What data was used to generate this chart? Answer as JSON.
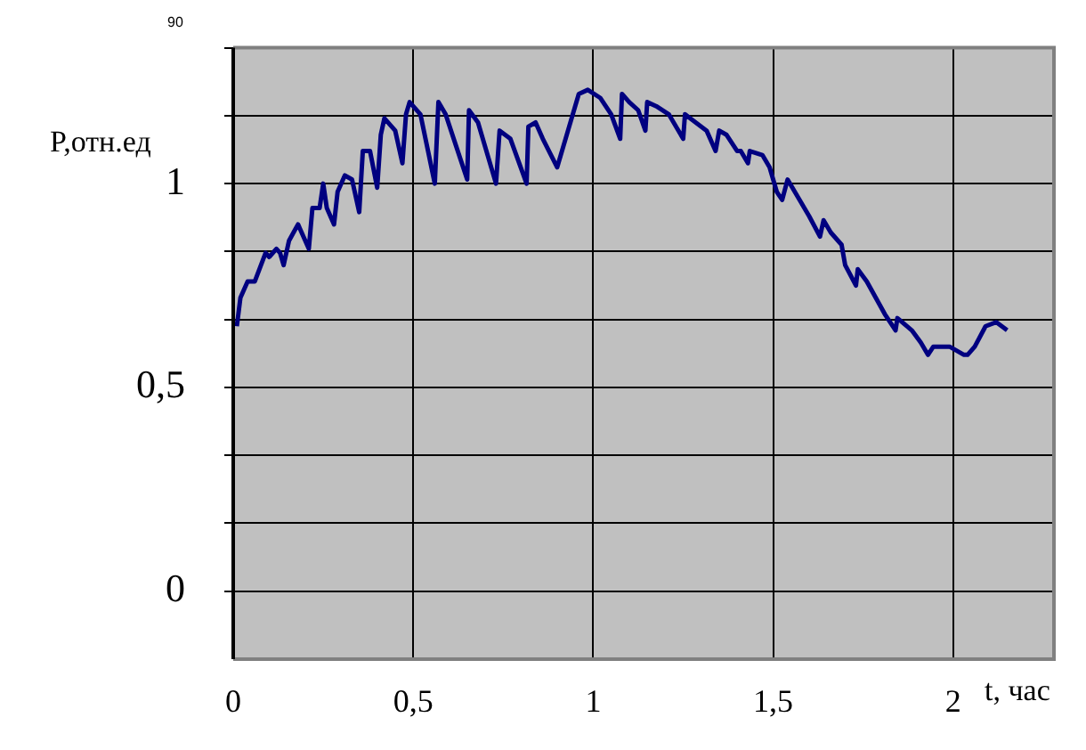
{
  "chart_data": {
    "type": "line",
    "xlabel": "t, час",
    "ylabel": "P,отн.ед",
    "xlim": [
      0,
      2.28
    ],
    "xticks": [
      0,
      {
        "value": 0.5,
        "label": "0,5"
      },
      1,
      {
        "value": 1.5,
        "label": "1,5"
      },
      2
    ],
    "ylim": [
      -0.1667,
      1.3333
    ],
    "yticks": [
      0,
      {
        "value": 0.1667,
        "label": null
      },
      {
        "value": 0.3333,
        "label": null
      },
      {
        "value": 0.5,
        "label": "0,5"
      },
      {
        "value": 0.6667,
        "label": null
      },
      {
        "value": 0.8333,
        "label": null
      },
      1,
      {
        "value": 1.1667,
        "label": null
      },
      {
        "value": 1.3333,
        "label": null
      }
    ],
    "annotations": [
      "90"
    ],
    "grid": true,
    "legend": false,
    "marker": "none",
    "line_style": "solid",
    "series": [
      {
        "color": "#000080",
        "x": [
          0.01,
          0.02,
          0.04,
          0.06,
          0.09,
          0.1,
          0.12,
          0.13,
          0.14,
          0.155,
          0.18,
          0.19,
          0.21,
          0.22,
          0.24,
          0.25,
          0.26,
          0.28,
          0.29,
          0.31,
          0.33,
          0.35,
          0.36,
          0.38,
          0.4,
          0.41,
          0.42,
          0.45,
          0.47,
          0.48,
          0.49,
          0.52,
          0.56,
          0.57,
          0.59,
          0.65,
          0.655,
          0.68,
          0.73,
          0.74,
          0.77,
          0.815,
          0.82,
          0.84,
          0.86,
          0.9,
          0.93,
          0.96,
          0.985,
          1.02,
          1.05,
          1.075,
          1.08,
          1.1,
          1.125,
          1.145,
          1.15,
          1.175,
          1.21,
          1.25,
          1.255,
          1.27,
          1.315,
          1.34,
          1.35,
          1.37,
          1.4,
          1.41,
          1.43,
          1.435,
          1.47,
          1.49,
          1.51,
          1.525,
          1.54,
          1.56,
          1.6,
          1.63,
          1.64,
          1.66,
          1.69,
          1.7,
          1.73,
          1.735,
          1.76,
          1.81,
          1.84,
          1.845,
          1.885,
          1.91,
          1.93,
          1.945,
          1.99,
          2.03,
          2.04,
          2.06,
          2.09,
          2.12,
          2.15
        ],
        "values": [
          0.65,
          0.72,
          0.76,
          0.76,
          0.83,
          0.82,
          0.84,
          0.83,
          0.8,
          0.86,
          0.9,
          0.88,
          0.84,
          0.94,
          0.94,
          1.0,
          0.94,
          0.9,
          0.98,
          1.02,
          1.01,
          0.93,
          1.08,
          1.08,
          0.99,
          1.12,
          1.16,
          1.13,
          1.05,
          1.17,
          1.2,
          1.17,
          1.0,
          1.2,
          1.17,
          1.01,
          1.18,
          1.15,
          1.0,
          1.13,
          1.11,
          1.0,
          1.14,
          1.15,
          1.11,
          1.04,
          1.13,
          1.22,
          1.23,
          1.21,
          1.17,
          1.11,
          1.22,
          1.2,
          1.18,
          1.13,
          1.2,
          1.19,
          1.17,
          1.11,
          1.17,
          1.16,
          1.13,
          1.08,
          1.13,
          1.12,
          1.08,
          1.08,
          1.05,
          1.08,
          1.07,
          1.04,
          0.98,
          0.96,
          1.01,
          0.98,
          0.92,
          0.87,
          0.91,
          0.88,
          0.85,
          0.8,
          0.75,
          0.79,
          0.76,
          0.68,
          0.64,
          0.67,
          0.64,
          0.61,
          0.58,
          0.6,
          0.6,
          0.58,
          0.58,
          0.6,
          0.65,
          0.66,
          0.64
        ]
      }
    ]
  }
}
